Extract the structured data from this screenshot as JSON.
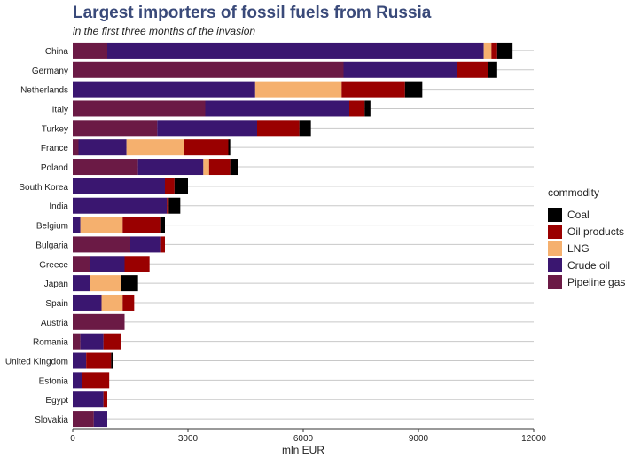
{
  "chart_data": {
    "type": "bar",
    "orientation": "horizontal",
    "stacked": true,
    "title": "Largest importers of fossil fuels from Russia",
    "subtitle": "in the first three months of the invasion",
    "xlabel": "mln EUR",
    "xlim": [
      0,
      12000
    ],
    "xticks": [
      "0",
      "3000",
      "6000",
      "9000",
      "12000"
    ],
    "grid": true,
    "legend_position": "right",
    "legend_title": "commodity",
    "categories": [
      "China",
      "Germany",
      "Netherlands",
      "Italy",
      "Turkey",
      "France",
      "Poland",
      "South Korea",
      "India",
      "Belgium",
      "Bulgaria",
      "Greece",
      "Japan",
      "Spain",
      "Austria",
      "Romania",
      "United Kingdom",
      "Estonia",
      "Egypt",
      "Slovakia"
    ],
    "series": [
      {
        "name": "Pipeline gas",
        "color": "#6b1a45",
        "values": [
          900,
          7050,
          0,
          3450,
          2200,
          150,
          1700,
          0,
          0,
          0,
          1500,
          450,
          0,
          0,
          1350,
          200,
          0,
          0,
          0,
          550
        ]
      },
      {
        "name": "Crude oil",
        "color": "#3a1670",
        "values": [
          9800,
          2950,
          4750,
          3750,
          2600,
          1250,
          1700,
          2400,
          2450,
          200,
          800,
          900,
          450,
          750,
          0,
          600,
          350,
          250,
          800,
          350
        ]
      },
      {
        "name": "LNG",
        "color": "#f5b06e",
        "values": [
          200,
          0,
          2250,
          0,
          0,
          1500,
          150,
          0,
          0,
          1100,
          0,
          0,
          800,
          550,
          0,
          0,
          0,
          0,
          0,
          0
        ]
      },
      {
        "name": "Oil products",
        "color": "#9a0000",
        "values": [
          150,
          800,
          1650,
          400,
          1100,
          1150,
          550,
          250,
          50,
          1000,
          100,
          650,
          0,
          300,
          0,
          450,
          650,
          700,
          100,
          0
        ]
      },
      {
        "name": "Coal",
        "color": "#000000",
        "values": [
          400,
          250,
          450,
          150,
          300,
          50,
          200,
          350,
          300,
          100,
          0,
          0,
          450,
          0,
          0,
          0,
          50,
          0,
          0,
          0
        ]
      }
    ],
    "legend_order": [
      "Coal",
      "Oil products",
      "LNG",
      "Crude oil",
      "Pipeline gas"
    ]
  }
}
